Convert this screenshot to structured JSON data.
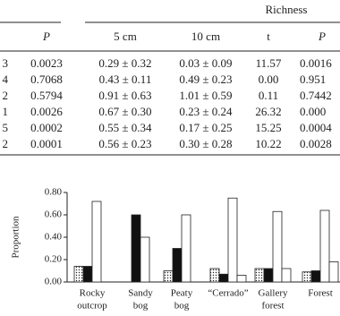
{
  "table": {
    "group_header": "Richness",
    "columns": [
      "P",
      "5 cm",
      "10 cm",
      "t",
      "P"
    ],
    "rows": [
      [
        "3",
        "0.0023",
        "0.29 ± 0.32",
        "0.03 ± 0.09",
        "11.57",
        "0.0016"
      ],
      [
        "4",
        "0.7068",
        "0.43 ± 0.11",
        "0.49 ± 0.23",
        "0.00",
        "0.951"
      ],
      [
        "2",
        "0.5794",
        "0.91 ± 0.63",
        "1.01 ± 0.59",
        "0.11",
        "0.7442"
      ],
      [
        "1",
        "0.0026",
        "0.67 ± 0.30",
        "0.23 ± 0.24",
        "26.32",
        "0.000"
      ],
      [
        "5",
        "0.0002",
        "0.55 ± 0.34",
        "0.17 ± 0.25",
        "15.25",
        "0.0004"
      ],
      [
        "2",
        "0.0001",
        "0.56 ± 0.23",
        "0.30 ± 0.28",
        "10.22",
        "0.0028"
      ]
    ]
  },
  "chart_data": {
    "type": "bar",
    "y_label": "Proportion",
    "categories": [
      [
        "Rocky",
        "outcrop"
      ],
      [
        "Sandy",
        "bog"
      ],
      [
        "Peaty",
        "bog"
      ],
      [
        "“Cerrado”"
      ],
      [
        "Gallery",
        "forest"
      ],
      [
        "Forest"
      ]
    ],
    "series": [
      {
        "color": "url(#dots)",
        "values": [
          0.14,
          0,
          0.1,
          0.12,
          0.12,
          0.09
        ]
      },
      {
        "color": "#111",
        "values": [
          0.14,
          0.6,
          0.3,
          0.07,
          0.12,
          0.1
        ]
      },
      {
        "color": "#fff",
        "values": [
          0.72,
          0.4,
          0.6,
          0.75,
          0.63,
          0.64
        ]
      },
      {
        "color": "#fff",
        "values": [
          0,
          0,
          0,
          0.06,
          0.12,
          0.18
        ]
      }
    ],
    "ylim": [
      0,
      0.8
    ],
    "yticks": [
      {
        "value": 0,
        "label": "0.00"
      },
      {
        "value": 0.2,
        "label": "0.20"
      },
      {
        "value": 0.4,
        "label": "0.40"
      },
      {
        "value": 0.6,
        "label": "0.60"
      },
      {
        "value": 0.8,
        "label": "0.80"
      }
    ]
  }
}
